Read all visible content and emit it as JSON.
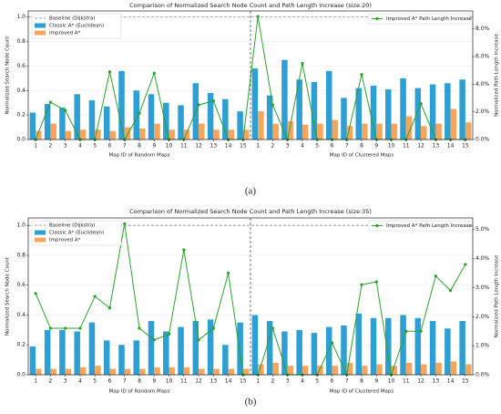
{
  "chart_data": [
    {
      "type": "bar_line",
      "title": "Comparison of Normalized Search Node Count and Path Length Increase (size:20)",
      "panel_label": "(a)",
      "categories": [
        "1",
        "2",
        "3",
        "4",
        "5",
        "6",
        "7",
        "8",
        "9",
        "10",
        "11",
        "12",
        "13",
        "14",
        "15",
        "1",
        "2",
        "3",
        "4",
        "5",
        "6",
        "7",
        "8",
        "9",
        "10",
        "11",
        "12",
        "13",
        "14",
        "15"
      ],
      "x_labels": [
        "Map ID of Random Maps",
        "Map ID of Clustered Maps"
      ],
      "ylabel": "Normalized Search Node Count",
      "y2label": "Normalized Path Length Increase",
      "baseline": {
        "name": "Baseline (Dijkstra)",
        "value": 1.0,
        "color": "#888888"
      },
      "series": [
        {
          "name": "Classic A* (Euclidean)",
          "color": "#2e9fd2",
          "axis": "y",
          "values": [
            0.22,
            0.29,
            0.26,
            0.37,
            0.32,
            0.27,
            0.56,
            0.4,
            0.37,
            0.3,
            0.28,
            0.46,
            0.38,
            0.33,
            0.23,
            0.58,
            0.36,
            0.65,
            0.49,
            0.47,
            0.56,
            0.34,
            0.42,
            0.44,
            0.41,
            0.5,
            0.42,
            0.45,
            0.46,
            0.49
          ]
        },
        {
          "name": "Improved A*",
          "color": "#f5a55c",
          "axis": "y",
          "values": [
            0.07,
            0.13,
            0.07,
            0.08,
            0.08,
            0.07,
            0.1,
            0.09,
            0.13,
            0.08,
            0.08,
            0.13,
            0.08,
            0.08,
            0.08,
            0.23,
            0.13,
            0.15,
            0.12,
            0.13,
            0.16,
            0.11,
            0.13,
            0.13,
            0.13,
            0.19,
            0.11,
            0.13,
            0.25,
            0.14
          ]
        },
        {
          "name": "Improved A* Path Length Increase",
          "color": "#2ca02c",
          "axis": "y2",
          "values": [
            0,
            2.7,
            2.1,
            0,
            0,
            4.9,
            0,
            1.9,
            4.8,
            0,
            0,
            2.5,
            2.8,
            0,
            0,
            8.9,
            2.5,
            0,
            5.5,
            0,
            0,
            0,
            4.7,
            0,
            0,
            0,
            2.6,
            0,
            0,
            0
          ]
        }
      ],
      "ylim": [
        0,
        1.05
      ],
      "yticks": [
        {
          "value": 0,
          "label": "0.0"
        },
        {
          "value": 0.2,
          "label": "0.2"
        },
        {
          "value": 0.4,
          "label": "0.4"
        },
        {
          "value": 0.6,
          "label": "0.6"
        },
        {
          "value": 0.8,
          "label": "0.8"
        },
        {
          "value": 1,
          "label": "1.0"
        }
      ],
      "y2lim": [
        0,
        9.3
      ],
      "y2ticks": [
        {
          "value": 0,
          "label": "0.0%"
        },
        {
          "value": 2,
          "label": "2.0%"
        },
        {
          "value": 4,
          "label": "4.0%"
        },
        {
          "value": 6,
          "label": "6.0%"
        },
        {
          "value": 8,
          "label": "8.0%"
        }
      ],
      "grid": true
    },
    {
      "type": "bar_line",
      "title": "Comparison of Normalized Search Node Count and Path Length Increase (size:35)",
      "panel_label": "(b)",
      "categories": [
        "1",
        "2",
        "3",
        "4",
        "5",
        "6",
        "7",
        "8",
        "9",
        "10",
        "11",
        "12",
        "13",
        "14",
        "15",
        "1",
        "2",
        "3",
        "4",
        "5",
        "6",
        "7",
        "8",
        "9",
        "10",
        "11",
        "12",
        "13",
        "14",
        "15"
      ],
      "x_labels": [
        "Map ID of Random Maps",
        "Map ID of Clustered Maps"
      ],
      "ylabel": "Normalized Search Node Count",
      "y2label": "Normalized Path Length Increase",
      "baseline": {
        "name": "Baseline (Dijkstra)",
        "value": 1.0,
        "color": "#888888"
      },
      "series": [
        {
          "name": "Classic A* (Euclidean)",
          "color": "#2e9fd2",
          "axis": "y",
          "values": [
            0.19,
            0.3,
            0.3,
            0.29,
            0.35,
            0.23,
            0.2,
            0.23,
            0.36,
            0.29,
            0.32,
            0.36,
            0.37,
            0.2,
            0.35,
            0.4,
            0.36,
            0.29,
            0.3,
            0.28,
            0.32,
            0.33,
            0.41,
            0.38,
            0.38,
            0.4,
            0.38,
            0.36,
            0.31,
            0.36
          ]
        },
        {
          "name": "Improved A*",
          "color": "#f5a55c",
          "axis": "y",
          "values": [
            0.04,
            0.04,
            0.04,
            0.05,
            0.06,
            0.04,
            0.04,
            0.04,
            0.05,
            0.05,
            0.05,
            0.04,
            0.04,
            0.04,
            0.04,
            0.07,
            0.08,
            0.06,
            0.06,
            0.06,
            0.06,
            0.08,
            0.06,
            0.07,
            0.06,
            0.08,
            0.07,
            0.08,
            0.09,
            0.07
          ]
        },
        {
          "name": "Improved A* Path Length Increase",
          "color": "#2ca02c",
          "axis": "y2",
          "values": [
            2.8,
            1.6,
            1.6,
            1.6,
            2.7,
            2.3,
            5.2,
            1.6,
            1.2,
            1.4,
            4.3,
            1.2,
            1.6,
            3.5,
            0,
            0,
            1.6,
            0,
            0,
            0,
            1.1,
            0,
            3.1,
            3.2,
            0,
            1.5,
            1.5,
            3.4,
            2.9,
            3.8
          ]
        }
      ],
      "ylim": [
        0,
        1.05
      ],
      "yticks": [
        {
          "value": 0,
          "label": "0.0"
        },
        {
          "value": 0.2,
          "label": "0.2"
        },
        {
          "value": 0.4,
          "label": "0.4"
        },
        {
          "value": 0.6,
          "label": "0.6"
        },
        {
          "value": 0.8,
          "label": "0.8"
        },
        {
          "value": 1,
          "label": "1.0"
        }
      ],
      "y2lim": [
        0,
        5.4
      ],
      "y2ticks": [
        {
          "value": 0,
          "label": "0.0%"
        },
        {
          "value": 1,
          "label": "1.0%"
        },
        {
          "value": 2,
          "label": "2.0%"
        },
        {
          "value": 3,
          "label": "3.0%"
        },
        {
          "value": 4,
          "label": "4.0%"
        },
        {
          "value": 5,
          "label": "5.0%"
        }
      ],
      "grid": true
    }
  ]
}
